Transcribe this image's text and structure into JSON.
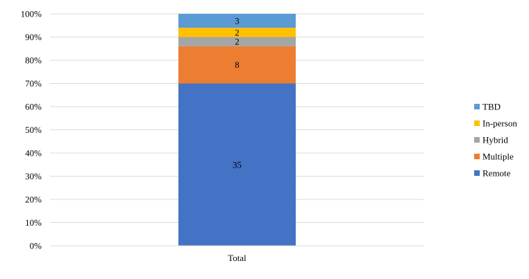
{
  "chart_data": {
    "type": "bar",
    "stacked": true,
    "percent_stacked": true,
    "title": "",
    "xlabel": "",
    "ylabel": "",
    "categories": [
      "Total"
    ],
    "series": [
      {
        "name": "Remote",
        "values": [
          35
        ],
        "color": "#4472c4"
      },
      {
        "name": "Multiple",
        "values": [
          8
        ],
        "color": "#ed7d31"
      },
      {
        "name": "Hybrid",
        "values": [
          2
        ],
        "color": "#a5a5a5"
      },
      {
        "name": "In-person",
        "values": [
          2
        ],
        "color": "#ffc000"
      },
      {
        "name": "TBD",
        "values": [
          3
        ],
        "color": "#5b9bd5"
      }
    ],
    "ylim": [
      0,
      100
    ],
    "y_ticks": [
      "0%",
      "10%",
      "20%",
      "30%",
      "40%",
      "50%",
      "60%",
      "70%",
      "80%",
      "90%",
      "100%"
    ],
    "grid": true,
    "legend_position": "right",
    "legend_order": [
      "TBD",
      "In-person",
      "Hybrid",
      "Multiple",
      "Remote"
    ],
    "data_labels": true
  }
}
